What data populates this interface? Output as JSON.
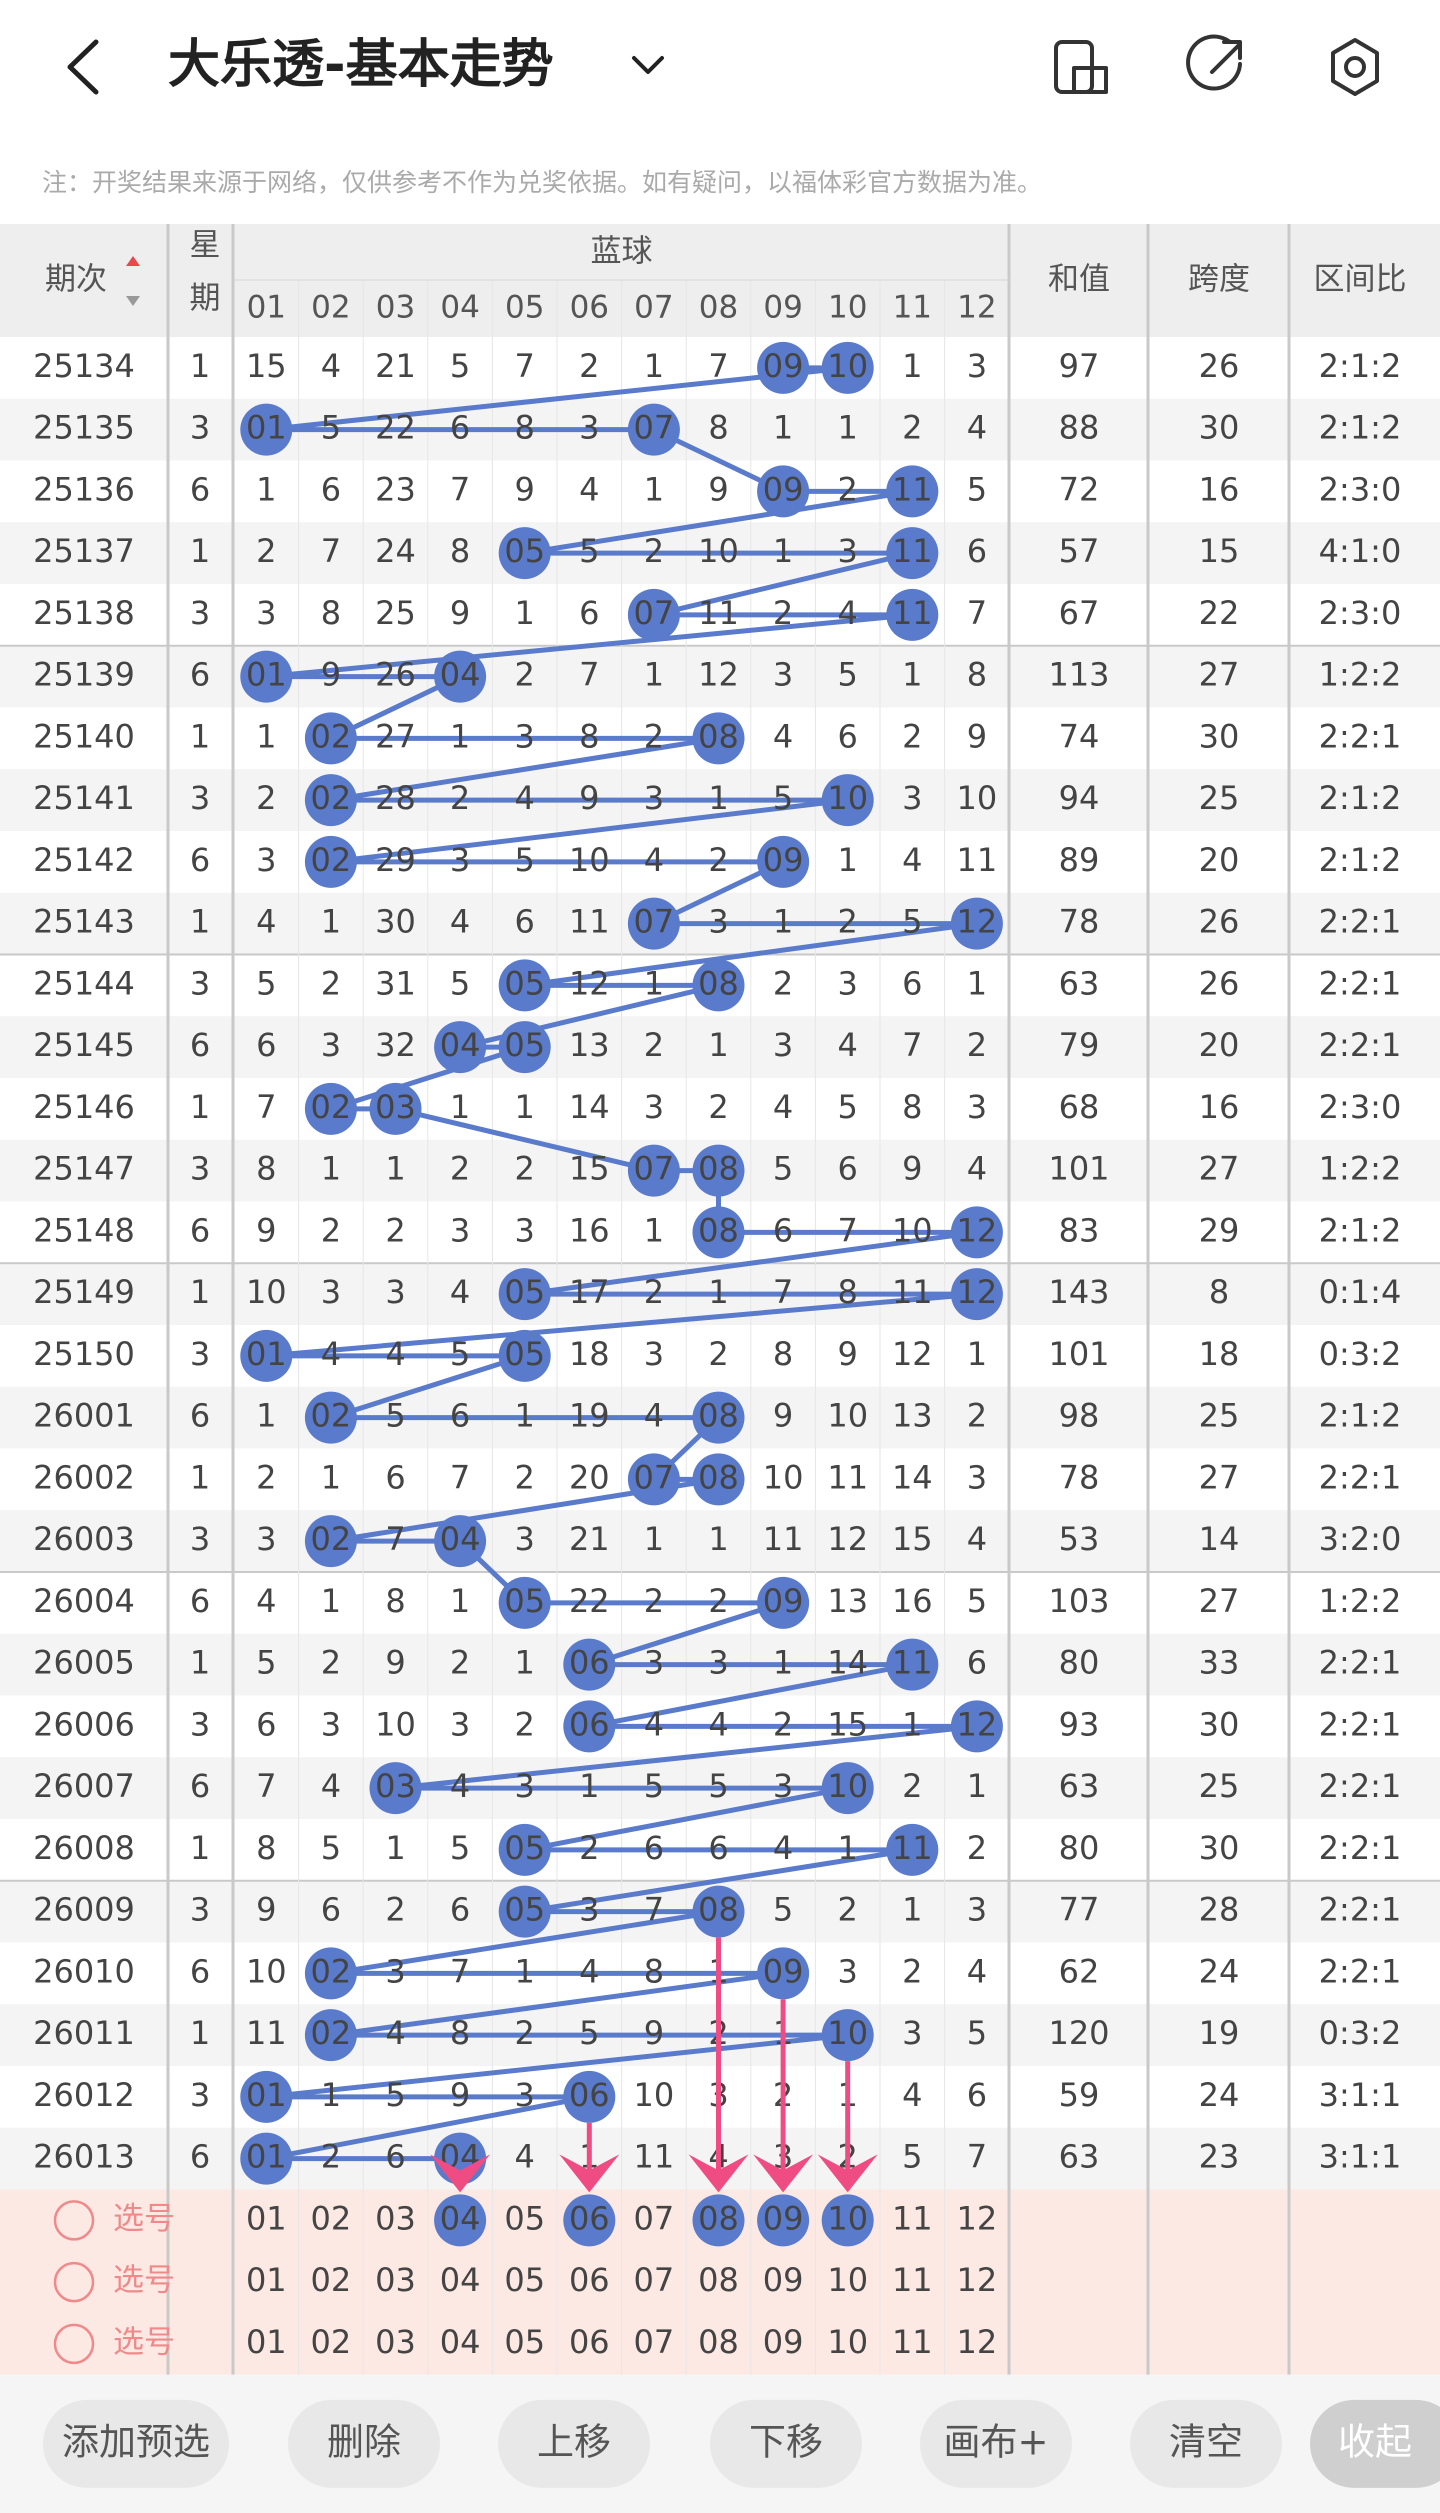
{
  "header": {
    "title": "大乐透-基本走势",
    "note": "注：开奖结果来源于网络，仅供参考不作为兑奖依据。如有疑问，以福体彩官方数据为准。"
  },
  "table": {
    "columns": {
      "issue": "期次",
      "weekday": "星期",
      "group": "蓝球",
      "numbers": [
        "01",
        "02",
        "03",
        "04",
        "05",
        "06",
        "07",
        "08",
        "09",
        "10",
        "11",
        "12"
      ],
      "sum": "和值",
      "span": "跨度",
      "ratio": "区间比"
    },
    "rows": [
      {
        "issue": 25134,
        "weekday": 1,
        "cells": [
          "15",
          "4",
          "21",
          "5",
          "7",
          "2",
          "1",
          "7",
          "09",
          "10",
          "1",
          "3"
        ],
        "balls": [
          8,
          9
        ],
        "sum": 97,
        "span": 26,
        "ratio": "2:1:2"
      },
      {
        "issue": 25135,
        "weekday": 3,
        "cells": [
          "01",
          "5",
          "22",
          "6",
          "8",
          "3",
          "07",
          "8",
          "1",
          "1",
          "2",
          "4"
        ],
        "balls": [
          0,
          6
        ],
        "sum": 88,
        "span": 30,
        "ratio": "2:1:2"
      },
      {
        "issue": 25136,
        "weekday": 6,
        "cells": [
          "1",
          "6",
          "23",
          "7",
          "9",
          "4",
          "1",
          "9",
          "09",
          "2",
          "11",
          "5"
        ],
        "balls": [
          8,
          10
        ],
        "sum": 72,
        "span": 16,
        "ratio": "2:3:0"
      },
      {
        "issue": 25137,
        "weekday": 1,
        "cells": [
          "2",
          "7",
          "24",
          "8",
          "05",
          "5",
          "2",
          "10",
          "1",
          "3",
          "11",
          "6"
        ],
        "balls": [
          4,
          10
        ],
        "sum": 57,
        "span": 15,
        "ratio": "4:1:0"
      },
      {
        "issue": 25138,
        "weekday": 3,
        "cells": [
          "3",
          "8",
          "25",
          "9",
          "1",
          "6",
          "07",
          "11",
          "2",
          "4",
          "11",
          "7"
        ],
        "balls": [
          6,
          10
        ],
        "sum": 67,
        "span": 22,
        "ratio": "2:3:0"
      },
      {
        "issue": 25139,
        "weekday": 6,
        "cells": [
          "01",
          "9",
          "26",
          "04",
          "2",
          "7",
          "1",
          "12",
          "3",
          "5",
          "1",
          "8"
        ],
        "balls": [
          0,
          3
        ],
        "sum": 113,
        "span": 27,
        "ratio": "1:2:2"
      },
      {
        "issue": 25140,
        "weekday": 1,
        "cells": [
          "1",
          "02",
          "27",
          "1",
          "3",
          "8",
          "2",
          "08",
          "4",
          "6",
          "2",
          "9"
        ],
        "balls": [
          1,
          7
        ],
        "sum": 74,
        "span": 30,
        "ratio": "2:2:1"
      },
      {
        "issue": 25141,
        "weekday": 3,
        "cells": [
          "2",
          "02",
          "28",
          "2",
          "4",
          "9",
          "3",
          "1",
          "5",
          "10",
          "3",
          "10"
        ],
        "balls": [
          1,
          9
        ],
        "sum": 94,
        "span": 25,
        "ratio": "2:1:2"
      },
      {
        "issue": 25142,
        "weekday": 6,
        "cells": [
          "3",
          "02",
          "29",
          "3",
          "5",
          "10",
          "4",
          "2",
          "09",
          "1",
          "4",
          "11"
        ],
        "balls": [
          1,
          8
        ],
        "sum": 89,
        "span": 20,
        "ratio": "2:1:2"
      },
      {
        "issue": 25143,
        "weekday": 1,
        "cells": [
          "4",
          "1",
          "30",
          "4",
          "6",
          "11",
          "07",
          "3",
          "1",
          "2",
          "5",
          "12"
        ],
        "balls": [
          6,
          11
        ],
        "sum": 78,
        "span": 26,
        "ratio": "2:2:1"
      },
      {
        "issue": 25144,
        "weekday": 3,
        "cells": [
          "5",
          "2",
          "31",
          "5",
          "05",
          "12",
          "1",
          "08",
          "2",
          "3",
          "6",
          "1"
        ],
        "balls": [
          4,
          7
        ],
        "sum": 63,
        "span": 26,
        "ratio": "2:2:1"
      },
      {
        "issue": 25145,
        "weekday": 6,
        "cells": [
          "6",
          "3",
          "32",
          "04",
          "05",
          "13",
          "2",
          "1",
          "3",
          "4",
          "7",
          "2"
        ],
        "balls": [
          3,
          4
        ],
        "sum": 79,
        "span": 20,
        "ratio": "2:2:1"
      },
      {
        "issue": 25146,
        "weekday": 1,
        "cells": [
          "7",
          "02",
          "03",
          "1",
          "1",
          "14",
          "3",
          "2",
          "4",
          "5",
          "8",
          "3"
        ],
        "balls": [
          1,
          2
        ],
        "sum": 68,
        "span": 16,
        "ratio": "2:3:0"
      },
      {
        "issue": 25147,
        "weekday": 3,
        "cells": [
          "8",
          "1",
          "1",
          "2",
          "2",
          "15",
          "07",
          "08",
          "5",
          "6",
          "9",
          "4"
        ],
        "balls": [
          6,
          7
        ],
        "sum": 101,
        "span": 27,
        "ratio": "1:2:2"
      },
      {
        "issue": 25148,
        "weekday": 6,
        "cells": [
          "9",
          "2",
          "2",
          "3",
          "3",
          "16",
          "1",
          "08",
          "6",
          "7",
          "10",
          "12"
        ],
        "balls": [
          7,
          11
        ],
        "sum": 83,
        "span": 29,
        "ratio": "2:1:2"
      },
      {
        "issue": 25149,
        "weekday": 1,
        "cells": [
          "10",
          "3",
          "3",
          "4",
          "05",
          "17",
          "2",
          "1",
          "7",
          "8",
          "11",
          "12"
        ],
        "balls": [
          4,
          11
        ],
        "sum": 143,
        "span": 8,
        "ratio": "0:1:4"
      },
      {
        "issue": 25150,
        "weekday": 3,
        "cells": [
          "01",
          "4",
          "4",
          "5",
          "05",
          "18",
          "3",
          "2",
          "8",
          "9",
          "12",
          "1"
        ],
        "balls": [
          0,
          4
        ],
        "sum": 101,
        "span": 18,
        "ratio": "0:3:2"
      },
      {
        "issue": 26001,
        "weekday": 6,
        "cells": [
          "1",
          "02",
          "5",
          "6",
          "1",
          "19",
          "4",
          "08",
          "9",
          "10",
          "13",
          "2"
        ],
        "balls": [
          1,
          7
        ],
        "sum": 98,
        "span": 25,
        "ratio": "2:1:2"
      },
      {
        "issue": 26002,
        "weekday": 1,
        "cells": [
          "2",
          "1",
          "6",
          "7",
          "2",
          "20",
          "07",
          "08",
          "10",
          "11",
          "14",
          "3"
        ],
        "balls": [
          6,
          7
        ],
        "sum": 78,
        "span": 27,
        "ratio": "2:2:1"
      },
      {
        "issue": 26003,
        "weekday": 3,
        "cells": [
          "3",
          "02",
          "7",
          "04",
          "3",
          "21",
          "1",
          "1",
          "11",
          "12",
          "15",
          "4"
        ],
        "balls": [
          1,
          3
        ],
        "sum": 53,
        "span": 14,
        "ratio": "3:2:0"
      },
      {
        "issue": 26004,
        "weekday": 6,
        "cells": [
          "4",
          "1",
          "8",
          "1",
          "05",
          "22",
          "2",
          "2",
          "09",
          "13",
          "16",
          "5"
        ],
        "balls": [
          4,
          8
        ],
        "sum": 103,
        "span": 27,
        "ratio": "1:2:2"
      },
      {
        "issue": 26005,
        "weekday": 1,
        "cells": [
          "5",
          "2",
          "9",
          "2",
          "1",
          "06",
          "3",
          "3",
          "1",
          "14",
          "11",
          "6"
        ],
        "balls": [
          5,
          10
        ],
        "sum": 80,
        "span": 33,
        "ratio": "2:2:1"
      },
      {
        "issue": 26006,
        "weekday": 3,
        "cells": [
          "6",
          "3",
          "10",
          "3",
          "2",
          "06",
          "4",
          "4",
          "2",
          "15",
          "1",
          "12"
        ],
        "balls": [
          5,
          11
        ],
        "sum": 93,
        "span": 30,
        "ratio": "2:2:1"
      },
      {
        "issue": 26007,
        "weekday": 6,
        "cells": [
          "7",
          "4",
          "03",
          "4",
          "3",
          "1",
          "5",
          "5",
          "3",
          "10",
          "2",
          "1"
        ],
        "balls": [
          2,
          9
        ],
        "sum": 63,
        "span": 25,
        "ratio": "2:2:1"
      },
      {
        "issue": 26008,
        "weekday": 1,
        "cells": [
          "8",
          "5",
          "1",
          "5",
          "05",
          "2",
          "6",
          "6",
          "4",
          "1",
          "11",
          "2"
        ],
        "balls": [
          4,
          10
        ],
        "sum": 80,
        "span": 30,
        "ratio": "2:2:1"
      },
      {
        "issue": 26009,
        "weekday": 3,
        "cells": [
          "9",
          "6",
          "2",
          "6",
          "05",
          "3",
          "7",
          "08",
          "5",
          "2",
          "1",
          "3"
        ],
        "balls": [
          4,
          7
        ],
        "sum": 77,
        "span": 28,
        "ratio": "2:2:1"
      },
      {
        "issue": 26010,
        "weekday": 6,
        "cells": [
          "10",
          "02",
          "3",
          "7",
          "1",
          "4",
          "8",
          "1",
          "09",
          "3",
          "2",
          "4"
        ],
        "balls": [
          1,
          8
        ],
        "sum": 62,
        "span": 24,
        "ratio": "2:2:1"
      },
      {
        "issue": 26011,
        "weekday": 1,
        "cells": [
          "11",
          "02",
          "4",
          "8",
          "2",
          "5",
          "9",
          "2",
          "1",
          "10",
          "3",
          "5"
        ],
        "balls": [
          1,
          9
        ],
        "sum": 120,
        "span": 19,
        "ratio": "0:3:2"
      },
      {
        "issue": 26012,
        "weekday": 3,
        "cells": [
          "01",
          "1",
          "5",
          "9",
          "3",
          "06",
          "10",
          "3",
          "2",
          "1",
          "4",
          "6"
        ],
        "balls": [
          0,
          5
        ],
        "sum": 59,
        "span": 24,
        "ratio": "3:1:1"
      },
      {
        "issue": 26013,
        "weekday": 6,
        "cells": [
          "01",
          "2",
          "6",
          "04",
          "4",
          "1",
          "11",
          "4",
          "3",
          "2",
          "5",
          "7"
        ],
        "balls": [
          0,
          3
        ],
        "sum": 63,
        "span": 23,
        "ratio": "3:1:1"
      }
    ]
  },
  "picks": {
    "rows": [
      {
        "label": "选号",
        "numbers": [
          "01",
          "02",
          "03",
          "04",
          "05",
          "06",
          "07",
          "08",
          "09",
          "10",
          "11",
          "12"
        ],
        "selected": [
          3,
          5,
          7,
          8,
          9
        ]
      },
      {
        "label": "选号",
        "numbers": [
          "01",
          "02",
          "03",
          "04",
          "05",
          "06",
          "07",
          "08",
          "09",
          "10",
          "11",
          "12"
        ]
      },
      {
        "label": "选号",
        "numbers": [
          "01",
          "02",
          "03",
          "04",
          "05",
          "06",
          "07",
          "08",
          "09",
          "10",
          "11",
          "12"
        ]
      }
    ]
  },
  "buttons": [
    "添加预选",
    "删除",
    "上移",
    "下移",
    "画布+",
    "清空",
    "收起"
  ]
}
